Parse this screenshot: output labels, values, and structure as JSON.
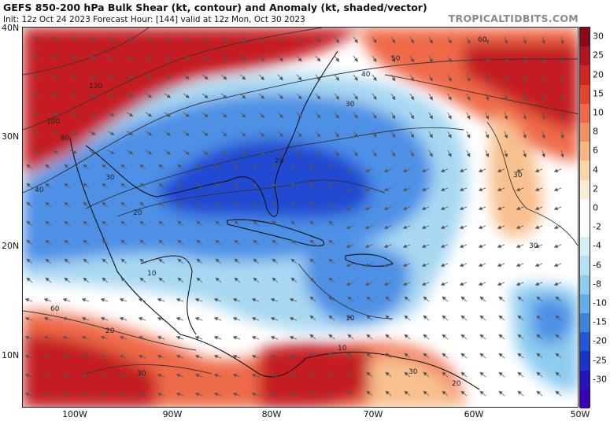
{
  "title": "GEFS 850-200 hPa Bulk Shear (kt, contour) and Anomaly (kt, shaded/vector)",
  "subtitle": "Init: 12z Oct 24 2023   Forecast Hour: [144]   valid at 12z Mon, Oct 30 2023",
  "brand": "TROPICALTIDBITS.COM",
  "lat_labels": [
    "40N",
    "30N",
    "20N",
    "10N"
  ],
  "lon_labels": [
    "100W",
    "90W",
    "80W",
    "70W",
    "60W",
    "50W"
  ],
  "colorbar": {
    "labels": [
      "30",
      "25",
      "20",
      "15",
      "10",
      "8",
      "6",
      "4",
      "2",
      "0",
      "-2",
      "-4",
      "-6",
      "-8",
      "-10",
      "-15",
      "-20",
      "-25",
      "-30"
    ],
    "colors": [
      "#8c0a18",
      "#b01620",
      "#d0261f",
      "#e5432c",
      "#f06a45",
      "#f59062",
      "#f8b482",
      "#f9d5a8",
      "#fbecd4",
      "#ffffff",
      "#ffffff",
      "#d6eef8",
      "#b4e0f2",
      "#8dccef",
      "#62aeea",
      "#3b84e1",
      "#2158d6",
      "#1a34c8",
      "#2414c0",
      "#3a00b5"
    ]
  },
  "contour_labels": [
    "130",
    "100",
    "80",
    "60",
    "50",
    "40",
    "40",
    "30",
    "30",
    "30",
    "30",
    "20",
    "20",
    "20",
    "20",
    "10",
    "10",
    "10",
    "30",
    "30",
    "60"
  ],
  "shear_region_colors": {
    "strong_positive": "#c41a22",
    "positive": "#ef6a48",
    "weak_positive": "#f8c08e",
    "neutral": "#ffffff",
    "weak_negative": "#a8d8f2",
    "negative": "#4d90e6",
    "strong_negative": "#2048d2"
  }
}
